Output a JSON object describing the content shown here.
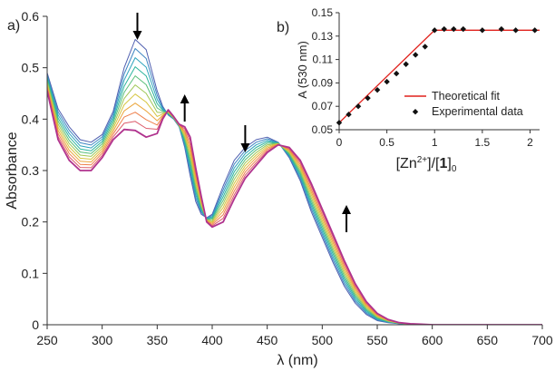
{
  "chart_data": [
    {
      "type": "line",
      "panel_label": "a)",
      "xlabel": "λ (nm)",
      "ylabel": "Absorbance",
      "xlim": [
        250,
        700
      ],
      "ylim": [
        0,
        0.6
      ],
      "xticks": [
        "250",
        "300",
        "350",
        "400",
        "450",
        "500",
        "550",
        "600",
        "650",
        "700"
      ],
      "yticks": [
        "0",
        "0.1",
        "0.2",
        "0.3",
        "0.4",
        "0.5",
        "0.6"
      ],
      "grid": false,
      "curve_count": 11,
      "colors": [
        "#4f5fb0",
        "#3f86c2",
        "#2da3bd",
        "#2bb49c",
        "#59bf7a",
        "#9fc756",
        "#d6c53f",
        "#eba63c",
        "#ee7f4a",
        "#dc5a6a",
        "#b0338e"
      ],
      "series_initial": {
        "x": [
          250,
          260,
          270,
          280,
          290,
          300,
          310,
          320,
          330,
          340,
          350,
          355,
          360,
          365,
          370,
          375,
          380,
          385,
          390,
          395,
          400,
          410,
          420,
          430,
          440,
          450,
          460,
          470,
          480,
          490,
          500,
          510,
          520,
          530,
          540,
          550,
          560,
          570,
          580,
          590,
          600,
          650,
          700
        ],
        "y": [
          0.49,
          0.42,
          0.385,
          0.36,
          0.355,
          0.37,
          0.415,
          0.5,
          0.555,
          0.535,
          0.455,
          0.425,
          0.408,
          0.4,
          0.385,
          0.345,
          0.29,
          0.24,
          0.215,
          0.208,
          0.215,
          0.27,
          0.32,
          0.345,
          0.36,
          0.365,
          0.355,
          0.325,
          0.28,
          0.22,
          0.17,
          0.12,
          0.075,
          0.042,
          0.02,
          0.008,
          0.004,
          0.002,
          0.001,
          0.0,
          0.0,
          0.0,
          0.0
        ]
      },
      "series_final": {
        "x": [
          250,
          260,
          270,
          280,
          290,
          300,
          310,
          320,
          330,
          340,
          350,
          355,
          360,
          365,
          370,
          375,
          380,
          385,
          390,
          395,
          400,
          410,
          420,
          430,
          440,
          450,
          460,
          470,
          480,
          490,
          500,
          510,
          520,
          530,
          540,
          550,
          560,
          570,
          580,
          590,
          600,
          650,
          700
        ],
        "y": [
          0.455,
          0.36,
          0.32,
          0.3,
          0.3,
          0.325,
          0.36,
          0.38,
          0.378,
          0.365,
          0.372,
          0.4,
          0.418,
          0.405,
          0.39,
          0.385,
          0.365,
          0.305,
          0.25,
          0.2,
          0.19,
          0.2,
          0.245,
          0.285,
          0.31,
          0.335,
          0.35,
          0.345,
          0.32,
          0.275,
          0.225,
          0.175,
          0.125,
          0.08,
          0.045,
          0.022,
          0.01,
          0.004,
          0.002,
          0.001,
          0.0,
          0.0,
          0.0
        ]
      },
      "arrows": [
        {
          "x": 332,
          "direction": "down"
        },
        {
          "x": 375,
          "direction": "up"
        },
        {
          "x": 430,
          "direction": "down"
        },
        {
          "x": 522,
          "direction": "up"
        }
      ]
    },
    {
      "type": "scatter",
      "panel_label": "b)",
      "xlabel_parts": {
        "pre": "[Zn",
        "sup": "2+",
        "mid": "]/[",
        "bold": "1",
        "post": "]",
        "sub": "0"
      },
      "ylabel": "A (530 nm)",
      "xlim": [
        0,
        2.1
      ],
      "ylim": [
        0.05,
        0.15
      ],
      "xticks": [
        "0",
        "0.5",
        "1",
        "1.5",
        "2"
      ],
      "yticks": [
        "0.05",
        "0.07",
        "0.09",
        "0.11",
        "0.13",
        "0.15"
      ],
      "grid": false,
      "legend_position": "bottom-right",
      "series": [
        {
          "name": "Theoretical fit",
          "kind": "line",
          "color": "#e0201b",
          "x": [
            0,
            1.0,
            2.1
          ],
          "y": [
            0.056,
            0.135,
            0.135
          ]
        },
        {
          "name": "Experimental data",
          "kind": "points",
          "color": "#111111",
          "x": [
            0,
            0.1,
            0.2,
            0.3,
            0.4,
            0.5,
            0.6,
            0.7,
            0.8,
            0.9,
            1.0,
            1.1,
            1.2,
            1.3,
            1.5,
            1.7,
            1.85,
            2.05
          ],
          "y": [
            0.056,
            0.063,
            0.07,
            0.077,
            0.084,
            0.091,
            0.098,
            0.106,
            0.114,
            0.121,
            0.135,
            0.136,
            0.136,
            0.136,
            0.135,
            0.136,
            0.135,
            0.135
          ]
        }
      ]
    }
  ]
}
